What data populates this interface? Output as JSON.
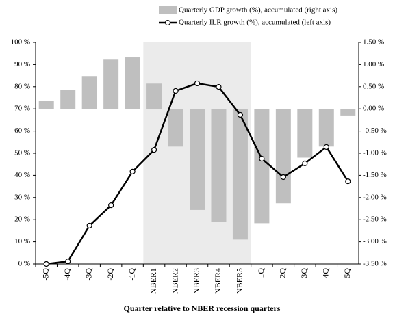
{
  "chart_data": {
    "type": "bar-line",
    "x_label": "Quarter relative to NBER recession quarters",
    "categories": [
      "-5Q",
      "-4Q",
      "-3Q",
      "-2Q",
      "-1Q",
      "NBER1",
      "NBER2",
      "NBER3",
      "NBER4",
      "NBER5",
      "1Q",
      "2Q",
      "3Q",
      "4Q",
      "5Q"
    ],
    "shade": {
      "from": "NBER1",
      "to": "NBER5",
      "color": "#ebebeb"
    },
    "legend": "top",
    "series": [
      {
        "name": "Quarterly GDP growth (%), accumulated (right axis)",
        "type": "bar",
        "axis": "y2",
        "color": "#bfbfbf",
        "values": [
          0.18,
          0.43,
          0.74,
          1.11,
          1.16,
          0.57,
          -0.85,
          -2.28,
          -2.55,
          -2.95,
          -2.58,
          -2.13,
          -1.1,
          -0.85,
          -0.15
        ]
      },
      {
        "name": "Quarterly ILR growth (%), accumulated (left axis)",
        "type": "line",
        "axis": "y",
        "color": "#000000",
        "values": [
          0.0,
          1.2,
          17.3,
          26.5,
          41.7,
          51.5,
          78.1,
          81.5,
          79.9,
          67.3,
          47.5,
          39.2,
          45.4,
          52.8,
          37.3
        ]
      }
    ],
    "ylim": [
      0,
      100
    ],
    "yticks": [
      {
        "value": 0,
        "label": "0 %"
      },
      {
        "value": 10,
        "label": "10 %"
      },
      {
        "value": 20,
        "label": "20 %"
      },
      {
        "value": 30,
        "label": "30 %"
      },
      {
        "value": 40,
        "label": "40 %"
      },
      {
        "value": 50,
        "label": "50 %"
      },
      {
        "value": 60,
        "label": "60 %"
      },
      {
        "value": 70,
        "label": "70 %"
      },
      {
        "value": 80,
        "label": "80 %"
      },
      {
        "value": 90,
        "label": "90 %"
      },
      {
        "value": 100,
        "label": "100 %"
      }
    ],
    "y2lim": [
      -3.5,
      1.5
    ],
    "y2ticks": [
      {
        "value": -3.5,
        "label": "-3.50 %"
      },
      {
        "value": -3.0,
        "label": "-3.00 %"
      },
      {
        "value": -2.5,
        "label": "-2.50 %"
      },
      {
        "value": -2.0,
        "label": "-2.00 %"
      },
      {
        "value": -1.5,
        "label": "-1.50 %"
      },
      {
        "value": -1.0,
        "label": "-1.00 %"
      },
      {
        "value": -0.5,
        "label": "-0.50 %"
      },
      {
        "value": 0,
        "label": "0.00 %"
      },
      {
        "value": 0.5,
        "label": "0.50 %"
      },
      {
        "value": 1.0,
        "label": "1.00 %"
      },
      {
        "value": 1.5,
        "label": "1.50 %"
      }
    ]
  }
}
